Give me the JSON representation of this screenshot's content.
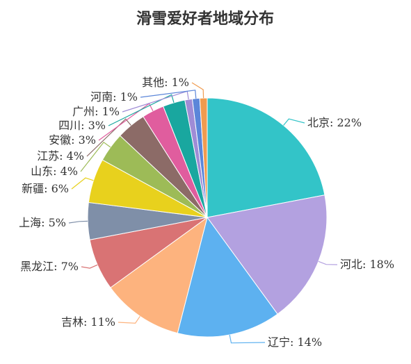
{
  "chart_data": {
    "type": "pie",
    "title": "滑雪爱好者地域分布",
    "slices": [
      {
        "name": "北京",
        "value": 22,
        "label": "北京: 22%",
        "color": "#33C4C8"
      },
      {
        "name": "河北",
        "value": 18,
        "label": "河北: 18%",
        "color": "#B3A1E0"
      },
      {
        "name": "辽宁",
        "value": 14,
        "label": "辽宁: 14%",
        "color": "#5DB1F0"
      },
      {
        "name": "吉林",
        "value": 11,
        "label": "吉林: 11%",
        "color": "#FDB37E"
      },
      {
        "name": "黑龙江",
        "value": 7,
        "label": "黑龙江: 7%",
        "color": "#D97374"
      },
      {
        "name": "上海",
        "value": 5,
        "label": "上海: 5%",
        "color": "#7F8FA8"
      },
      {
        "name": "新疆",
        "value": 6,
        "label": "新疆: 6%",
        "color": "#E8D11D"
      },
      {
        "name": "山东",
        "value": 4,
        "label": "山东: 4%",
        "color": "#9DBB57"
      },
      {
        "name": "江苏",
        "value": 4,
        "label": "江苏: 4%",
        "color": "#8C6B67"
      },
      {
        "name": "安徽",
        "value": 3,
        "label": "安徽: 3%",
        "color": "#E05D9E"
      },
      {
        "name": "四川",
        "value": 3,
        "label": "四川: 3%",
        "color": "#19A79F"
      },
      {
        "name": "广州",
        "value": 1,
        "label": "广州: 1%",
        "color": "#9F8CD6"
      },
      {
        "name": "河南",
        "value": 1,
        "label": "河南: 1%",
        "color": "#5B86D9"
      },
      {
        "name": "其他",
        "value": 1,
        "label": "其他: 1%",
        "color": "#F09B4F"
      }
    ]
  }
}
